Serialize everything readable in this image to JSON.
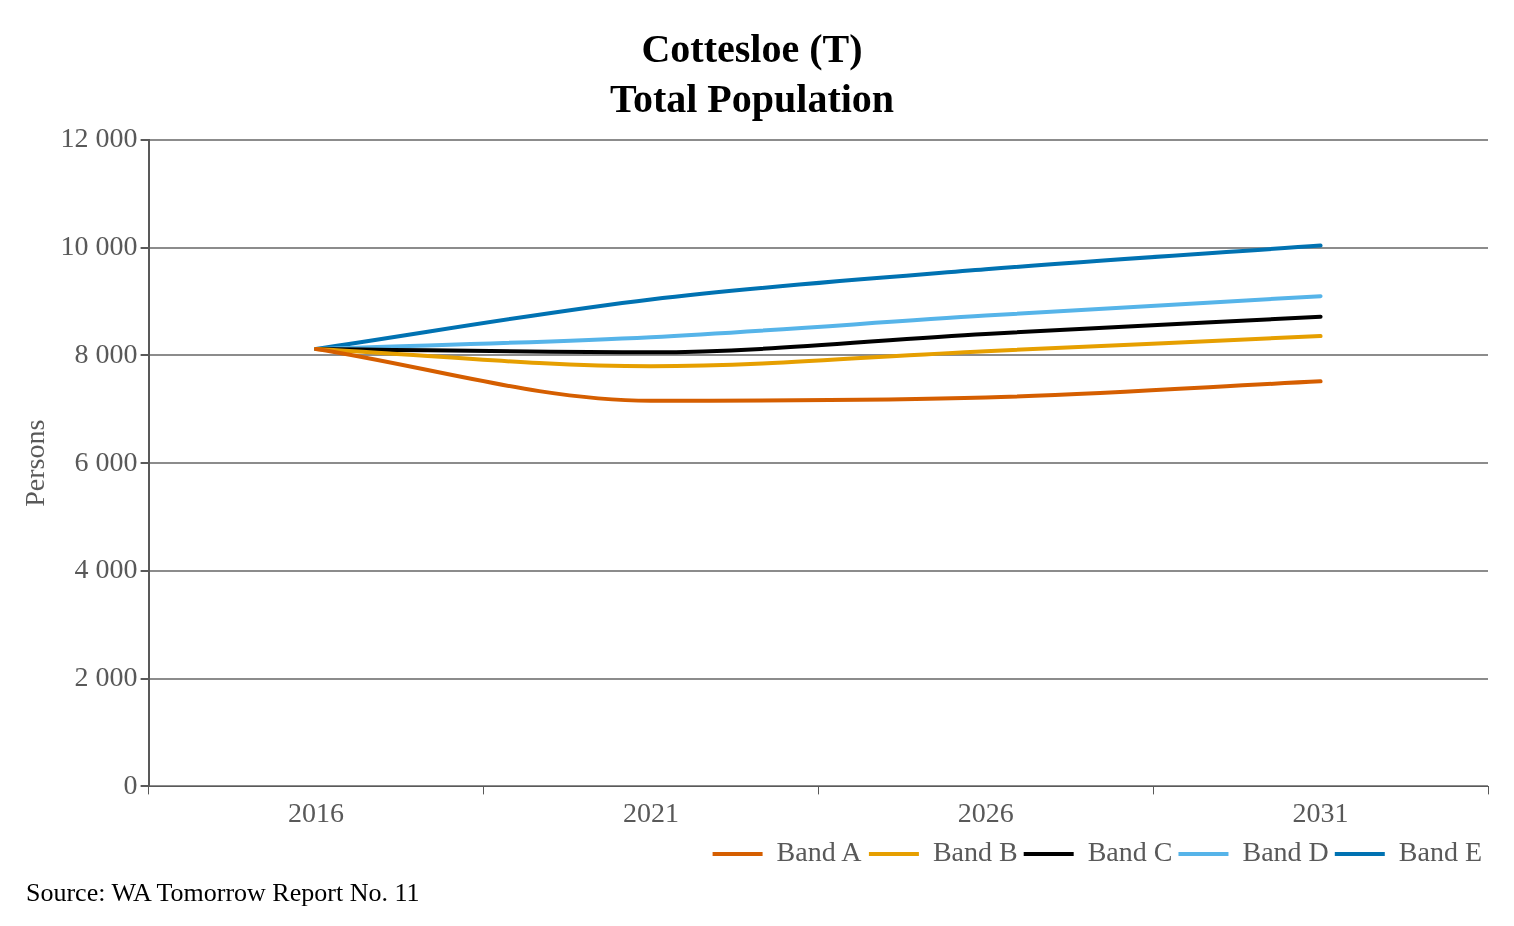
{
  "chart_data": {
    "type": "line",
    "title": "Cottesloe (T)",
    "subtitle": "Total Population",
    "ylabel": "Persons",
    "categories": [
      "2016",
      "2021",
      "2026",
      "2031"
    ],
    "series": [
      {
        "name": "Band A",
        "color": "#d55e00",
        "values": [
          8120,
          7160,
          7220,
          7520
        ]
      },
      {
        "name": "Band B",
        "color": "#e69f00",
        "values": [
          8120,
          7800,
          8080,
          8360
        ]
      },
      {
        "name": "Band C",
        "color": "#000000",
        "values": [
          8120,
          8060,
          8400,
          8720
        ]
      },
      {
        "name": "Band D",
        "color": "#56b4e9",
        "values": [
          8120,
          8340,
          8740,
          9100
        ]
      },
      {
        "name": "Band E",
        "color": "#0072b2",
        "values": [
          8120,
          9040,
          9600,
          10040
        ]
      }
    ],
    "ylim": [
      0,
      12000
    ],
    "yticks": [
      {
        "value": 0,
        "label": "0"
      },
      {
        "value": 2000,
        "label": "2 000"
      },
      {
        "value": 4000,
        "label": "4 000"
      },
      {
        "value": 6000,
        "label": "6 000"
      },
      {
        "value": 8000,
        "label": "8 000"
      },
      {
        "value": 10000,
        "label": "10 000"
      },
      {
        "value": 12000,
        "label": "12 000"
      }
    ],
    "grid": "y",
    "legend": "bottom",
    "marker": "none",
    "line_style": "solid",
    "annotations": [
      "Source: WA Tomorrow Report No. 11"
    ]
  }
}
